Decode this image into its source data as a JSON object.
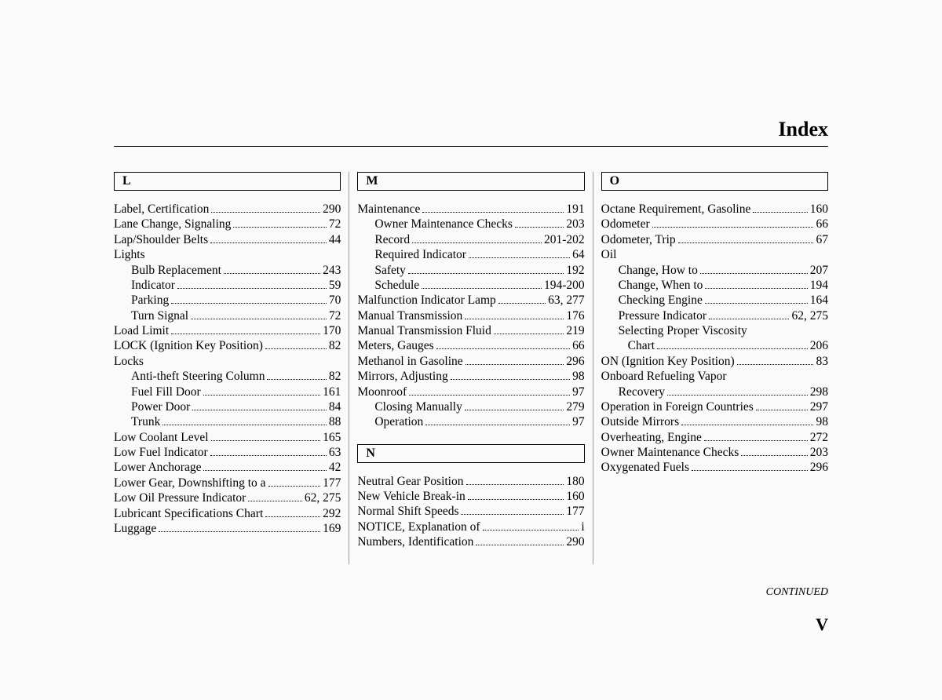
{
  "title": "Index",
  "continued_label": "CONTINUED",
  "page_number": "V",
  "columns": [
    {
      "sections": [
        {
          "letter": "L",
          "entries": [
            {
              "label": "Label, Certification",
              "page": "290",
              "sub": false
            },
            {
              "label": "Lane Change, Signaling",
              "page": "72",
              "sub": false
            },
            {
              "label": "Lap/Shoulder Belts",
              "page": "44",
              "sub": false
            },
            {
              "label": "Lights",
              "page": "",
              "sub": false
            },
            {
              "label": "Bulb Replacement",
              "page": "243",
              "sub": true
            },
            {
              "label": "Indicator",
              "page": "59",
              "sub": true
            },
            {
              "label": "Parking",
              "page": "70",
              "sub": true
            },
            {
              "label": "Turn Signal",
              "page": "72",
              "sub": true
            },
            {
              "label": "Load Limit",
              "page": "170",
              "sub": false
            },
            {
              "label": "LOCK (Ignition Key Position)",
              "page": "82",
              "sub": false
            },
            {
              "label": "Locks",
              "page": "",
              "sub": false
            },
            {
              "label": "Anti-theft Steering Column",
              "page": "82",
              "sub": true
            },
            {
              "label": "Fuel Fill Door",
              "page": "161",
              "sub": true
            },
            {
              "label": "Power Door",
              "page": "84",
              "sub": true
            },
            {
              "label": "Trunk",
              "page": "88",
              "sub": true
            },
            {
              "label": "Low Coolant Level",
              "page": "165",
              "sub": false
            },
            {
              "label": "Low Fuel Indicator",
              "page": "63",
              "sub": false
            },
            {
              "label": "Lower Anchorage",
              "page": "42",
              "sub": false
            },
            {
              "label": "Lower Gear, Downshifting to a",
              "page": "177",
              "sub": false
            },
            {
              "label": "Low Oil Pressure Indicator",
              "page": "62, 275",
              "sub": false
            },
            {
              "label": "Lubricant Specifications Chart",
              "page": "292",
              "sub": false
            },
            {
              "label": "Luggage",
              "page": "169",
              "sub": false
            }
          ]
        }
      ]
    },
    {
      "sections": [
        {
          "letter": "M",
          "entries": [
            {
              "label": "Maintenance",
              "page": "191",
              "sub": false
            },
            {
              "label": "Owner Maintenance Checks",
              "page": "203",
              "sub": true
            },
            {
              "label": "Record",
              "page": "201-202",
              "sub": true
            },
            {
              "label": "Required Indicator",
              "page": "64",
              "sub": true
            },
            {
              "label": "Safety",
              "page": "192",
              "sub": true
            },
            {
              "label": "Schedule",
              "page": "194-200",
              "sub": true
            },
            {
              "label": "Malfunction Indicator Lamp",
              "page": "63, 277",
              "sub": false
            },
            {
              "label": "Manual Transmission",
              "page": "176",
              "sub": false
            },
            {
              "label": "Manual Transmission Fluid",
              "page": "219",
              "sub": false
            },
            {
              "label": "Meters, Gauges",
              "page": "66",
              "sub": false
            },
            {
              "label": "Methanol in Gasoline",
              "page": "296",
              "sub": false
            },
            {
              "label": "Mirrors, Adjusting",
              "page": "98",
              "sub": false
            },
            {
              "label": "Moonroof",
              "page": "97",
              "sub": false
            },
            {
              "label": "Closing Manually",
              "page": "279",
              "sub": true
            },
            {
              "label": "Operation",
              "page": "97",
              "sub": true
            }
          ]
        },
        {
          "letter": "N",
          "entries": [
            {
              "label": "Neutral Gear Position",
              "page": "180",
              "sub": false
            },
            {
              "label": "New Vehicle Break-in",
              "page": "160",
              "sub": false
            },
            {
              "label": "Normal Shift Speeds",
              "page": "177",
              "sub": false
            },
            {
              "label": "NOTICE, Explanation of",
              "page": "i",
              "sub": false
            },
            {
              "label": "Numbers, Identification",
              "page": "290",
              "sub": false
            }
          ]
        }
      ]
    },
    {
      "sections": [
        {
          "letter": "O",
          "entries": [
            {
              "label": "Octane Requirement, Gasoline",
              "page": "160",
              "sub": false
            },
            {
              "label": "Odometer",
              "page": "66",
              "sub": false
            },
            {
              "label": "Odometer, Trip",
              "page": "67",
              "sub": false
            },
            {
              "label": "Oil",
              "page": "",
              "sub": false
            },
            {
              "label": "Change, How to",
              "page": "207",
              "sub": true
            },
            {
              "label": "Change, When to",
              "page": "194",
              "sub": true
            },
            {
              "label": "Checking Engine",
              "page": "164",
              "sub": true
            },
            {
              "label": "Pressure Indicator",
              "page": "62, 275",
              "sub": true
            },
            {
              "label": "Selecting Proper Viscosity",
              "page": "",
              "sub": true
            },
            {
              "label": "Chart",
              "page": "206",
              "sub": true,
              "extra_indent": true
            },
            {
              "label": "ON (Ignition Key Position)",
              "page": "83",
              "sub": false
            },
            {
              "label": "Onboard Refueling Vapor",
              "page": "",
              "sub": false
            },
            {
              "label": "Recovery",
              "page": "298",
              "sub": true
            },
            {
              "label": "Operation in Foreign Countries",
              "page": "297",
              "sub": false
            },
            {
              "label": "Outside Mirrors",
              "page": "98",
              "sub": false
            },
            {
              "label": "Overheating, Engine",
              "page": "272",
              "sub": false
            },
            {
              "label": "Owner Maintenance Checks",
              "page": "203",
              "sub": false
            },
            {
              "label": "Oxygenated Fuels",
              "page": "296",
              "sub": false
            }
          ]
        }
      ]
    }
  ]
}
